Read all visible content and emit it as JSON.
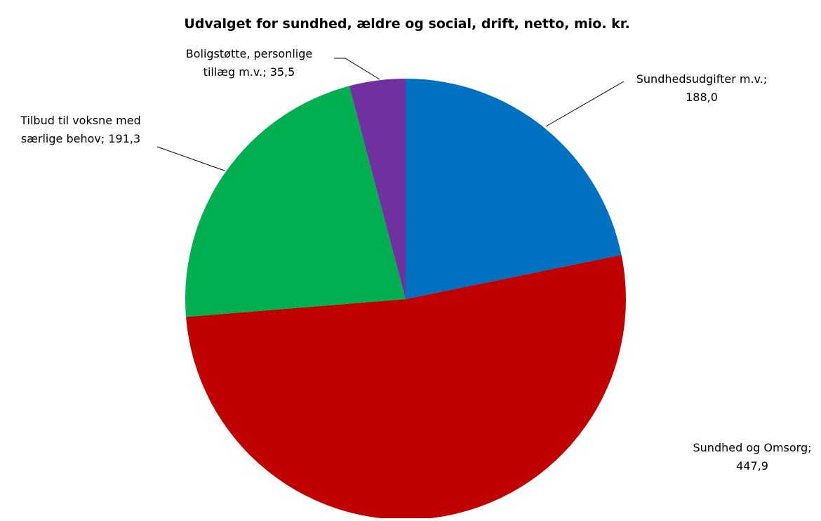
{
  "chart_data": {
    "type": "pie",
    "title": "Udvalget for sundhed, ældre og social, drift, netto, mio. kr.",
    "slices": [
      {
        "category": "Sundhedsudgifter m.v.",
        "value": 188.0,
        "value_text": "188,0",
        "label_lines": [
          "Sundhedsudgifter m.v.;",
          "188,0"
        ],
        "color": "#0070C0"
      },
      {
        "category": "Sundhed og Omsorg",
        "value": 447.9,
        "value_text": "447,9",
        "label_lines": [
          "Sundhed og Omsorg;",
          "447,9"
        ],
        "color": "#C00000"
      },
      {
        "category": "Tilbud til voksne med særlige behov",
        "value": 191.3,
        "value_text": "191,3",
        "label_lines": [
          "Tilbud til voksne med",
          "særlige behov; 191,3"
        ],
        "color": "#00B050"
      },
      {
        "category": "Boligstøtte, personlige tillæg m.v.",
        "value": 35.5,
        "value_text": "35,5",
        "label_lines": [
          "Boligstøtte, personlige",
          "tillæg m.v.; 35,5"
        ],
        "color": "#7030A0"
      }
    ],
    "start_angle": "12 o'clock",
    "direction": "clockwise",
    "legend": "none",
    "data_labels": "outside, with leader lines"
  }
}
